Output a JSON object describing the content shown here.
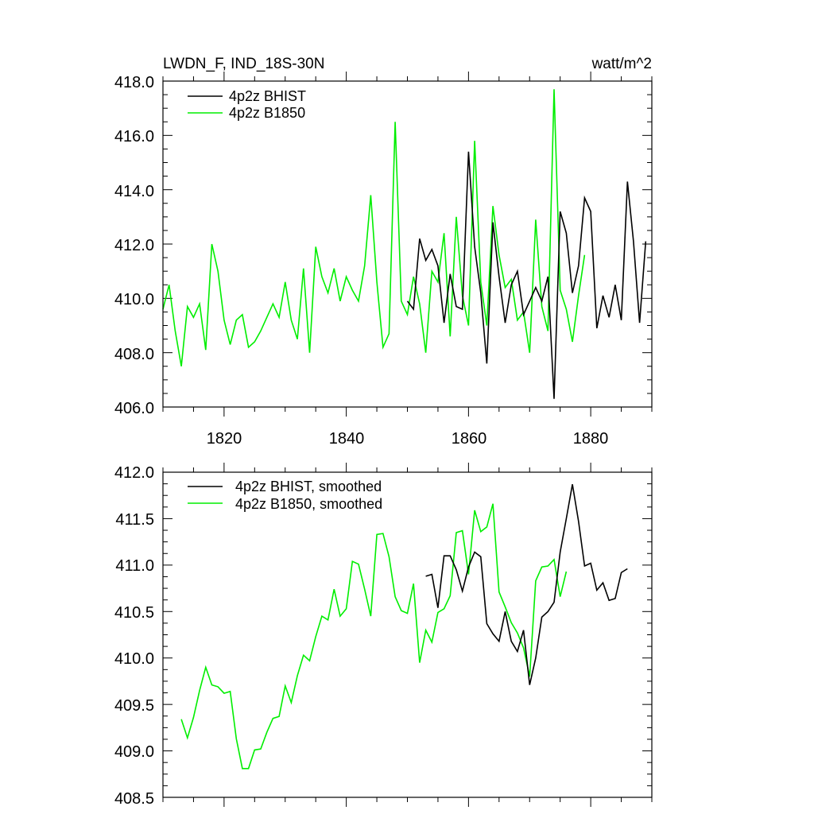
{
  "colors": {
    "BHIST": "#000000",
    "B1850": "#00ee00"
  },
  "chart_data": [
    {
      "type": "line",
      "title_left": "LWDN_F, IND_18S-30N",
      "title_right": "watt/m^2",
      "xlim": [
        1810,
        1890
      ],
      "ylim": [
        406.0,
        418.0
      ],
      "xticks": [
        1820,
        1840,
        1860,
        1880
      ],
      "yticks": [
        406,
        408,
        410,
        412,
        414,
        416,
        418
      ],
      "xtick_labels": [
        "1820",
        "1840",
        "1860",
        "1880"
      ],
      "ytick_labels": [
        "406.0",
        "408.0",
        "410.0",
        "412.0",
        "414.0",
        "416.0",
        "418.0"
      ],
      "legend_position": "top-left",
      "grid": false,
      "series": [
        {
          "name": "4p2z BHIST",
          "key": "BHIST",
          "x": [
            1850,
            1851,
            1852,
            1853,
            1854,
            1855,
            1856,
            1857,
            1858,
            1859,
            1860,
            1861,
            1862,
            1863,
            1864,
            1865,
            1866,
            1867,
            1868,
            1869,
            1870,
            1871,
            1872,
            1873,
            1874,
            1875,
            1876,
            1877,
            1878,
            1879,
            1880,
            1881,
            1882,
            1883,
            1884,
            1885,
            1886,
            1887,
            1888,
            1889
          ],
          "y": [
            409.9,
            409.6,
            412.2,
            411.4,
            411.8,
            411.2,
            409.1,
            410.9,
            409.7,
            409.6,
            415.4,
            411.9,
            410.2,
            407.6,
            412.8,
            410.8,
            409.1,
            410.5,
            411.0,
            409.4,
            409.9,
            410.4,
            409.9,
            410.8,
            406.3,
            413.2,
            412.4,
            410.2,
            411.2,
            413.7,
            413.2,
            408.9,
            410.1,
            409.3,
            410.5,
            409.2,
            414.3,
            412.1,
            409.1,
            412.1
          ]
        },
        {
          "name": "4p2z B1850",
          "key": "B1850",
          "x": [
            1810,
            1811,
            1812,
            1813,
            1814,
            1815,
            1816,
            1817,
            1818,
            1819,
            1820,
            1821,
            1822,
            1823,
            1824,
            1825,
            1826,
            1827,
            1828,
            1829,
            1830,
            1831,
            1832,
            1833,
            1834,
            1835,
            1836,
            1837,
            1838,
            1839,
            1840,
            1841,
            1842,
            1843,
            1844,
            1845,
            1846,
            1847,
            1848,
            1849,
            1850,
            1851,
            1852,
            1853,
            1854,
            1855,
            1856,
            1857,
            1858,
            1859,
            1860,
            1861,
            1862,
            1863,
            1864,
            1865,
            1866,
            1867,
            1868,
            1869,
            1870,
            1871,
            1872,
            1873,
            1874,
            1875,
            1876,
            1877,
            1878,
            1879
          ],
          "y": [
            409.6,
            410.5,
            408.8,
            407.5,
            409.7,
            409.3,
            409.8,
            408.1,
            412.0,
            411.0,
            409.2,
            408.3,
            409.2,
            409.4,
            408.2,
            408.4,
            408.8,
            409.3,
            409.8,
            409.3,
            410.6,
            409.2,
            408.5,
            411.1,
            408.0,
            411.9,
            410.8,
            410.2,
            411.1,
            409.9,
            410.8,
            410.3,
            409.9,
            411.2,
            413.8,
            410.6,
            408.2,
            408.7,
            416.5,
            409.9,
            409.4,
            410.8,
            409.8,
            408.0,
            411.0,
            410.6,
            412.4,
            408.6,
            413.0,
            410.1,
            409.0,
            415.8,
            410.6,
            409.0,
            413.4,
            411.6,
            410.4,
            410.7,
            409.2,
            409.5,
            408.0,
            412.9,
            409.7,
            408.8,
            417.7,
            410.3,
            409.6,
            408.4,
            410.1,
            411.6
          ]
        }
      ]
    },
    {
      "type": "line",
      "xlim": [
        1810,
        1890
      ],
      "ylim": [
        408.5,
        412.0
      ],
      "xticks": [
        1820,
        1840,
        1860,
        1880
      ],
      "yticks": [
        408.5,
        409.0,
        409.5,
        410.0,
        410.5,
        411.0,
        411.5,
        412.0
      ],
      "ytick_labels": [
        "408.5",
        "409.0",
        "409.5",
        "410.0",
        "410.5",
        "411.0",
        "411.5",
        "412.0"
      ],
      "legend_position": "top-left",
      "grid": false,
      "series": [
        {
          "name": "4p2z BHIST, smoothed",
          "key": "BHIST",
          "x": [
            1853,
            1854,
            1855,
            1856,
            1857,
            1858,
            1859,
            1860,
            1861,
            1862,
            1863,
            1864,
            1865,
            1866,
            1867,
            1868,
            1869,
            1870,
            1871,
            1872,
            1873,
            1874,
            1875,
            1876,
            1877,
            1878,
            1879,
            1880,
            1881,
            1882,
            1883,
            1884,
            1885,
            1886
          ],
          "y": [
            410.88,
            410.9,
            410.54,
            411.1,
            411.1,
            410.95,
            410.72,
            410.98,
            411.14,
            411.09,
            410.37,
            410.26,
            410.18,
            410.5,
            410.18,
            410.07,
            410.3,
            409.71,
            410.0,
            410.44,
            410.5,
            410.6,
            411.14,
            411.5,
            411.87,
            411.47,
            410.99,
            411.02,
            410.73,
            410.81,
            410.62,
            410.64,
            410.92,
            410.96
          ]
        },
        {
          "name": "4p2z B1850, smoothed",
          "key": "B1850",
          "x": [
            1813,
            1814,
            1815,
            1816,
            1817,
            1818,
            1819,
            1820,
            1821,
            1822,
            1823,
            1824,
            1825,
            1826,
            1827,
            1828,
            1829,
            1830,
            1831,
            1832,
            1833,
            1834,
            1835,
            1836,
            1837,
            1838,
            1839,
            1840,
            1841,
            1842,
            1843,
            1844,
            1845,
            1846,
            1847,
            1848,
            1849,
            1850,
            1851,
            1852,
            1853,
            1854,
            1855,
            1856,
            1857,
            1858,
            1859,
            1860,
            1861,
            1862,
            1863,
            1864,
            1865,
            1866,
            1867,
            1868,
            1869,
            1870,
            1871,
            1872,
            1873,
            1874,
            1875,
            1876
          ],
          "y": [
            409.34,
            409.14,
            409.36,
            409.65,
            409.9,
            409.71,
            409.69,
            409.62,
            409.64,
            409.13,
            408.81,
            408.81,
            409.01,
            409.02,
            409.2,
            409.35,
            409.37,
            409.7,
            409.52,
            409.81,
            410.03,
            409.97,
            410.23,
            410.45,
            410.41,
            410.74,
            410.45,
            410.53,
            411.04,
            411.01,
            410.74,
            410.45,
            411.33,
            411.34,
            411.09,
            410.66,
            410.51,
            410.48,
            410.8,
            409.95,
            410.3,
            410.17,
            410.49,
            410.53,
            410.67,
            411.35,
            411.37,
            410.9,
            411.59,
            411.36,
            411.41,
            411.66,
            410.71,
            410.55,
            410.38,
            410.27,
            410.11,
            409.8,
            410.83,
            410.98,
            410.99,
            411.06,
            410.66,
            410.93
          ]
        }
      ]
    }
  ]
}
